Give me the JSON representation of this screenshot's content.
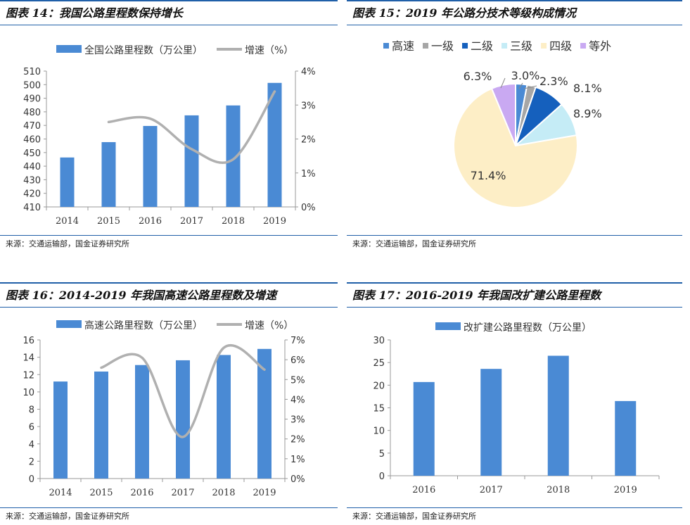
{
  "colors": {
    "bar": "#4a8ad4",
    "line": "#b0b0b0",
    "axis": "#999999",
    "header": "#1f5fa8",
    "pie": [
      "#4a8ad4",
      "#a6a6a6",
      "#1560bd",
      "#c5ecf6",
      "#fdeec6",
      "#c9a9f2"
    ]
  },
  "panels": [
    {
      "title": "图表 14：我国公路里程数保持增长",
      "source": "来源：交通运输部，国金证券研究所",
      "chart_data": {
        "type": "bar+line",
        "categories": [
          "2014",
          "2015",
          "2016",
          "2017",
          "2018",
          "2019"
        ],
        "series": [
          {
            "name": "全国公路里程数（万公里）",
            "type": "bar",
            "axis": "left",
            "values": [
              446.4,
              457.7,
              469.6,
              477.4,
              484.7,
              501.3
            ]
          },
          {
            "name": "增速（%）",
            "type": "line",
            "axis": "right",
            "values": [
              null,
              2.5,
              2.6,
              1.7,
              1.4,
              3.4
            ]
          }
        ],
        "yleft": {
          "min": 410,
          "max": 510,
          "step": 10,
          "ticks": [
            "410",
            "420",
            "430",
            "440",
            "450",
            "460",
            "470",
            "480",
            "490",
            "500",
            "510"
          ]
        },
        "yright": {
          "min": 0,
          "max": 4,
          "step": 1,
          "ticks": [
            "0%",
            "1%",
            "2%",
            "3%",
            "4%"
          ]
        },
        "legend": "top"
      }
    },
    {
      "title": "图表 15：2019 年公路分技术等级构成情况",
      "source": "来源：交通运输部，国金证券研究所",
      "chart_data": {
        "type": "pie",
        "labels": [
          "高速",
          "一级",
          "二级",
          "三级",
          "四级",
          "等外"
        ],
        "values": [
          3.0,
          2.3,
          8.1,
          8.9,
          71.4,
          6.3
        ],
        "value_labels": [
          "3.0%",
          "2.3%",
          "8.1%",
          "8.9%",
          "71.4%",
          "6.3%"
        ],
        "legend": "top"
      }
    },
    {
      "title": "图表 16：2014-2019 年我国高速公路里程数及增速",
      "source": "来源：交通运输部，国金证券研究所",
      "chart_data": {
        "type": "bar+line",
        "categories": [
          "2014",
          "2015",
          "2016",
          "2017",
          "2018",
          "2019"
        ],
        "series": [
          {
            "name": "高速公路里程数（万公里）",
            "type": "bar",
            "axis": "left",
            "values": [
              11.2,
              12.35,
              13.1,
              13.65,
              14.26,
              14.96
            ]
          },
          {
            "name": "增速（%）",
            "type": "line",
            "axis": "right",
            "values": [
              null,
              5.6,
              6.1,
              2.1,
              6.6,
              5.5
            ]
          }
        ],
        "yleft": {
          "min": 0,
          "max": 16,
          "step": 2,
          "ticks": [
            "0",
            "2",
            "4",
            "6",
            "8",
            "10",
            "12",
            "14",
            "16"
          ]
        },
        "yright": {
          "min": 0,
          "max": 7,
          "step": 1,
          "ticks": [
            "0%",
            "1%",
            "2%",
            "3%",
            "4%",
            "5%",
            "6%",
            "7%"
          ]
        },
        "legend": "top"
      }
    },
    {
      "title": "图表 17：2016-2019 年我国改扩建公路里程数",
      "source": "来源：交通运输部，国金证券研究所",
      "chart_data": {
        "type": "bar",
        "categories": [
          "2016",
          "2017",
          "2018",
          "2019"
        ],
        "series": [
          {
            "name": "改扩建公路里程数（万公里）",
            "type": "bar",
            "axis": "left",
            "values": [
              20.7,
              23.6,
              26.5,
              16.5
            ]
          }
        ],
        "yleft": {
          "min": 0,
          "max": 30,
          "step": 5,
          "ticks": [
            "0",
            "5",
            "10",
            "15",
            "20",
            "25",
            "30"
          ]
        },
        "legend": "top"
      }
    }
  ]
}
